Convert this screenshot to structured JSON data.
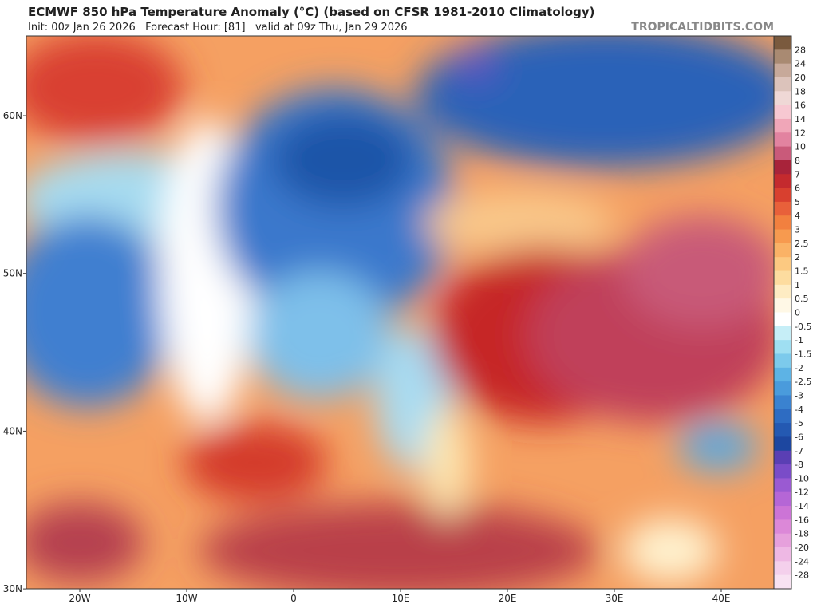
{
  "header": {
    "title": "ECMWF 850 hPa Temperature Anomaly (°C) (based on CFSR 1981-2010 Climatology)",
    "subtitle": "Init: 00z Jan 26 2026   Forecast Hour: [81]   valid at 09z Thu, Jan 29 2026",
    "watermark": "TROPICALTIDBITS.COM"
  },
  "map": {
    "lat_labels": [
      "60N",
      "50N",
      "40N",
      "30N"
    ],
    "lon_labels": [
      "20W",
      "10W",
      "0",
      "10E",
      "20E",
      "30E",
      "40E"
    ]
  },
  "colorbar": {
    "labels": [
      "28",
      "24",
      "20",
      "18",
      "16",
      "14",
      "12",
      "10",
      "8",
      "7",
      "6",
      "5",
      "4",
      "3",
      "2.5",
      "2",
      "1.5",
      "1",
      "0.5",
      "0",
      "-0.5",
      "-1",
      "-1.5",
      "-2",
      "-2.5",
      "-3",
      "-4",
      "-5",
      "-6",
      "-7",
      "-8",
      "-10",
      "-12",
      "-14",
      "-16",
      "-18",
      "-20",
      "-24",
      "-28"
    ],
    "colors": [
      "#7a5a3e",
      "#a98a72",
      "#c7a99a",
      "#dcc3bb",
      "#efd8d6",
      "#f7c8d2",
      "#f0a6b8",
      "#e283a0",
      "#c95a7a",
      "#a8233a",
      "#c42a2e",
      "#d8402f",
      "#e8603a",
      "#f2803f",
      "#f79a4f",
      "#fab266",
      "#fcc981",
      "#fddc9f",
      "#feecc3",
      "#fff8e6",
      "#ffffff",
      "#c6eef7",
      "#9fdff2",
      "#7ccaec",
      "#5db3e5",
      "#4a9bdc",
      "#3a82d0",
      "#2e6cc2",
      "#2459b2",
      "#1d47a0",
      "#5a3fb4",
      "#7a4cc8",
      "#9a5ad2",
      "#b566d6",
      "#cc74d6",
      "#dc88d8",
      "#e6a0dc",
      "#eeb8e4",
      "#f4d0ec",
      "#f8e2f2"
    ]
  }
}
